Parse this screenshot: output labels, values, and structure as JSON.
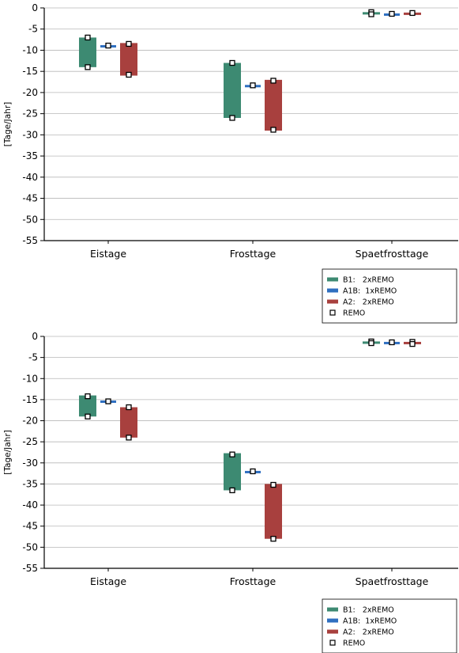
{
  "colors": {
    "B1": "#3d8a72",
    "A1B": "#2f6fc0",
    "A2": "#a8403e",
    "grid": "#b8b8b8"
  },
  "legend": [
    {
      "key": "B1",
      "label": "B1:   2xREMO"
    },
    {
      "key": "A1B",
      "label": "A1B:  1xREMO"
    },
    {
      "key": "A2",
      "label": "A2:   2xREMO"
    },
    {
      "key": "REMO",
      "label": "REMO"
    }
  ],
  "chart_data": [
    {
      "type": "bar",
      "ylabel": "[Tage/Jahr]",
      "ylim": [
        -55,
        0
      ],
      "yticks": [
        0,
        -5,
        -10,
        -15,
        -20,
        -25,
        -30,
        -35,
        -40,
        -45,
        -50,
        -55
      ],
      "grid": true,
      "legend_position": "below-right",
      "categories": [
        "Eistage",
        "Frosttage",
        "Spaetfrosttage"
      ],
      "series": [
        {
          "name": "B1:   2xREMO",
          "key": "B1",
          "ranges": [
            [
              -14,
              -7
            ],
            [
              -26,
              -13
            ],
            [
              -1.5,
              -1
            ]
          ],
          "remo": [
            [
              -7,
              -14
            ],
            [
              -13,
              -26
            ],
            [
              -1,
              -1.5
            ]
          ]
        },
        {
          "name": "A1B:  1xREMO",
          "key": "A1B",
          "ranges": [
            [
              -9,
              -8.8
            ],
            [
              -18.5,
              -18.2
            ],
            [
              -1.6,
              -1.3
            ]
          ],
          "remo": [
            [
              -8.9
            ],
            [
              -18.3
            ],
            [
              -1.4
            ]
          ]
        },
        {
          "name": "A2:   2xREMO",
          "key": "A2",
          "ranges": [
            [
              -16,
              -8.3
            ],
            [
              -29,
              -17
            ],
            [
              -1.3,
              -1.1
            ]
          ],
          "remo": [
            [
              -8.5,
              -15.8
            ],
            [
              -17.2,
              -28.8
            ],
            [
              -1.2
            ]
          ]
        }
      ]
    },
    {
      "type": "bar",
      "ylabel": "[Tage/Jahr]",
      "ylim": [
        -55,
        0
      ],
      "yticks": [
        0,
        -5,
        -10,
        -15,
        -20,
        -25,
        -30,
        -35,
        -40,
        -45,
        -50,
        -55
      ],
      "grid": true,
      "legend_position": "below-right",
      "categories": [
        "Eistage",
        "Frosttage",
        "Spaetfrosttage"
      ],
      "series": [
        {
          "name": "B1:   2xREMO",
          "key": "B1",
          "ranges": [
            [
              -19,
              -14
            ],
            [
              -36.5,
              -27.7
            ],
            [
              -1.6,
              -1.2
            ]
          ],
          "remo": [
            [
              -14.2,
              -19
            ],
            [
              -28,
              -36.5
            ],
            [
              -1.2,
              -1.6
            ]
          ]
        },
        {
          "name": "A1B:  1xREMO",
          "key": "A1B",
          "ranges": [
            [
              -15.5,
              -15.2
            ],
            [
              -32.2,
              -31.9
            ],
            [
              -1.5,
              -1.3
            ]
          ],
          "remo": [
            [
              -15.4
            ],
            [
              -32
            ],
            [
              -1.4
            ]
          ]
        },
        {
          "name": "A2:   2xREMO",
          "key": "A2",
          "ranges": [
            [
              -24,
              -16.8
            ],
            [
              -48,
              -35
            ],
            [
              -1.8,
              -1.3
            ]
          ],
          "remo": [
            [
              -16.8,
              -24
            ],
            [
              -35.2,
              -48
            ],
            [
              -1.3,
              -1.8
            ]
          ]
        }
      ]
    }
  ]
}
